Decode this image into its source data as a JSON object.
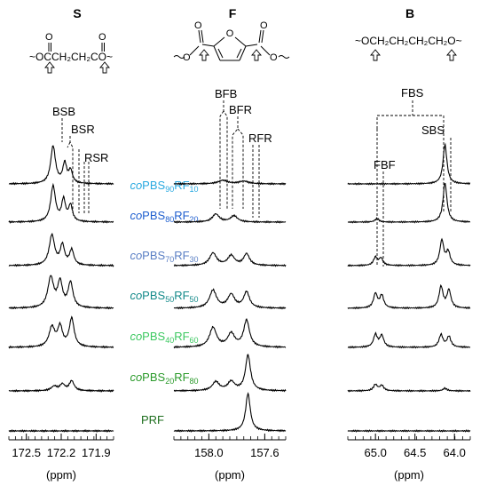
{
  "colors": {
    "spectrum": "#000000",
    "series": [
      "#29a9e0",
      "#1f5fcf",
      "#5a7fc4",
      "#148a8a",
      "#3cc860",
      "#2a9a2a",
      "#1e6e1e"
    ]
  },
  "structures": {
    "S": {
      "label": "S",
      "formula": "~OCCH₂CH₂CO~",
      "carbonyl": "O"
    },
    "F": {
      "label": "F",
      "ring_atom": "O",
      "carbonyl": "O",
      "chain_o": "O"
    },
    "B": {
      "label": "B",
      "formula": "~OCH₂CH₂CH₂CH₂O~"
    }
  },
  "annotations": {
    "BSB": "BSB",
    "BSR": "BSR",
    "RSR": "RSR",
    "BFB": "BFB",
    "BFR": "BFR",
    "RFR": "RFR",
    "FBS": "FBS",
    "FBF": "FBF",
    "SBS": "SBS"
  },
  "samples": [
    {
      "prefix": "co",
      "label": "PBS",
      "sub1": "90",
      "mid": "RF",
      "sub2": "10"
    },
    {
      "prefix": "co",
      "label": "PBS",
      "sub1": "80",
      "mid": "RF",
      "sub2": "20"
    },
    {
      "prefix": "co",
      "label": "PBS",
      "sub1": "70",
      "mid": "RF",
      "sub2": "30"
    },
    {
      "prefix": "co",
      "label": "PBS",
      "sub1": "50",
      "mid": "RF",
      "sub2": "50"
    },
    {
      "prefix": "co",
      "label": "PBS",
      "sub1": "40",
      "mid": "RF",
      "sub2": "60"
    },
    {
      "prefix": "co",
      "label": "PBS",
      "sub1": "20",
      "mid": "RF",
      "sub2": "80"
    },
    {
      "prefix": "",
      "label": "PRF",
      "sub1": "",
      "mid": "",
      "sub2": ""
    }
  ],
  "chart_data": [
    {
      "type": "line",
      "region": "S",
      "xlabel": "(ppm)",
      "xlim": [
        172.65,
        171.75
      ],
      "xticks": [
        "172.5",
        "172.2",
        "171.9"
      ],
      "xtick_values": [
        172.5,
        172.2,
        171.9
      ],
      "series": [
        {
          "peaks": [
            {
              "x": 172.27,
              "h": 42,
              "w": 0.025
            },
            {
              "x": 172.17,
              "h": 22,
              "w": 0.02
            },
            {
              "x": 172.12,
              "h": 14,
              "w": 0.02
            }
          ]
        },
        {
          "peaks": [
            {
              "x": 172.27,
              "h": 40,
              "w": 0.025
            },
            {
              "x": 172.18,
              "h": 24,
              "w": 0.02
            },
            {
              "x": 172.12,
              "h": 18,
              "w": 0.02
            }
          ]
        },
        {
          "peaks": [
            {
              "x": 172.28,
              "h": 34,
              "w": 0.028
            },
            {
              "x": 172.19,
              "h": 22,
              "w": 0.022
            },
            {
              "x": 172.11,
              "h": 17,
              "w": 0.022
            }
          ]
        },
        {
          "peaks": [
            {
              "x": 172.29,
              "h": 34,
              "w": 0.03
            },
            {
              "x": 172.21,
              "h": 28,
              "w": 0.025
            },
            {
              "x": 172.12,
              "h": 28,
              "w": 0.025
            }
          ]
        },
        {
          "peaks": [
            {
              "x": 172.28,
              "h": 22,
              "w": 0.03
            },
            {
              "x": 172.21,
              "h": 22,
              "w": 0.025
            },
            {
              "x": 172.11,
              "h": 32,
              "w": 0.025
            }
          ]
        },
        {
          "peaks": [
            {
              "x": 172.26,
              "h": 5,
              "w": 0.03
            },
            {
              "x": 172.19,
              "h": 7,
              "w": 0.025
            },
            {
              "x": 172.11,
              "h": 11,
              "w": 0.025
            }
          ]
        },
        {
          "peaks": []
        }
      ]
    },
    {
      "type": "line",
      "region": "F",
      "xlabel": "(ppm)",
      "xlim": [
        158.25,
        157.45
      ],
      "xticks": [
        "158.0",
        "157.6"
      ],
      "xtick_values": [
        158.0,
        157.6
      ],
      "series": [
        {
          "peaks": [
            {
              "x": 157.9,
              "h": 4,
              "w": 0.04
            },
            {
              "x": 157.75,
              "h": 3,
              "w": 0.04
            }
          ]
        },
        {
          "peaks": [
            {
              "x": 157.95,
              "h": 9,
              "w": 0.03
            },
            {
              "x": 157.82,
              "h": 7,
              "w": 0.03
            }
          ]
        },
        {
          "peaks": [
            {
              "x": 157.97,
              "h": 14,
              "w": 0.03
            },
            {
              "x": 157.84,
              "h": 11,
              "w": 0.03
            },
            {
              "x": 157.73,
              "h": 13,
              "w": 0.025
            }
          ]
        },
        {
          "peaks": [
            {
              "x": 157.97,
              "h": 20,
              "w": 0.03
            },
            {
              "x": 157.84,
              "h": 15,
              "w": 0.03
            },
            {
              "x": 157.73,
              "h": 18,
              "w": 0.025
            }
          ]
        },
        {
          "peaks": [
            {
              "x": 157.97,
              "h": 22,
              "w": 0.03
            },
            {
              "x": 157.84,
              "h": 15,
              "w": 0.03
            },
            {
              "x": 157.73,
              "h": 30,
              "w": 0.025
            }
          ]
        },
        {
          "peaks": [
            {
              "x": 157.95,
              "h": 10,
              "w": 0.03
            },
            {
              "x": 157.84,
              "h": 10,
              "w": 0.03
            },
            {
              "x": 157.72,
              "h": 40,
              "w": 0.022
            }
          ]
        },
        {
          "peaks": [
            {
              "x": 157.72,
              "h": 42,
              "w": 0.02
            }
          ]
        }
      ]
    },
    {
      "type": "line",
      "region": "B",
      "xlabel": "(ppm)",
      "xlim": [
        65.35,
        63.8
      ],
      "xticks": [
        "65.0",
        "64.5",
        "64.0"
      ],
      "xtick_values": [
        65.0,
        64.5,
        64.0
      ],
      "series": [
        {
          "peaks": [
            {
              "x": 64.12,
              "h": 44,
              "w": 0.03
            }
          ]
        },
        {
          "peaks": [
            {
              "x": 64.98,
              "h": 4,
              "w": 0.03
            },
            {
              "x": 64.12,
              "h": 44,
              "w": 0.03
            }
          ]
        },
        {
          "peaks": [
            {
              "x": 65.0,
              "h": 9,
              "w": 0.03
            },
            {
              "x": 64.93,
              "h": 8,
              "w": 0.03
            },
            {
              "x": 64.16,
              "h": 28,
              "w": 0.03
            },
            {
              "x": 64.08,
              "h": 15,
              "w": 0.03
            }
          ]
        },
        {
          "peaks": [
            {
              "x": 65.0,
              "h": 16,
              "w": 0.03
            },
            {
              "x": 64.92,
              "h": 14,
              "w": 0.03
            },
            {
              "x": 64.17,
              "h": 24,
              "w": 0.03
            },
            {
              "x": 64.07,
              "h": 20,
              "w": 0.03
            }
          ]
        },
        {
          "peaks": [
            {
              "x": 65.0,
              "h": 14,
              "w": 0.03
            },
            {
              "x": 64.92,
              "h": 13,
              "w": 0.03
            },
            {
              "x": 64.17,
              "h": 14,
              "w": 0.03
            },
            {
              "x": 64.07,
              "h": 12,
              "w": 0.03
            }
          ]
        },
        {
          "peaks": [
            {
              "x": 65.0,
              "h": 7,
              "w": 0.03
            },
            {
              "x": 64.92,
              "h": 6,
              "w": 0.03
            },
            {
              "x": 64.12,
              "h": 3,
              "w": 0.03
            }
          ]
        },
        {
          "peaks": []
        }
      ]
    }
  ]
}
